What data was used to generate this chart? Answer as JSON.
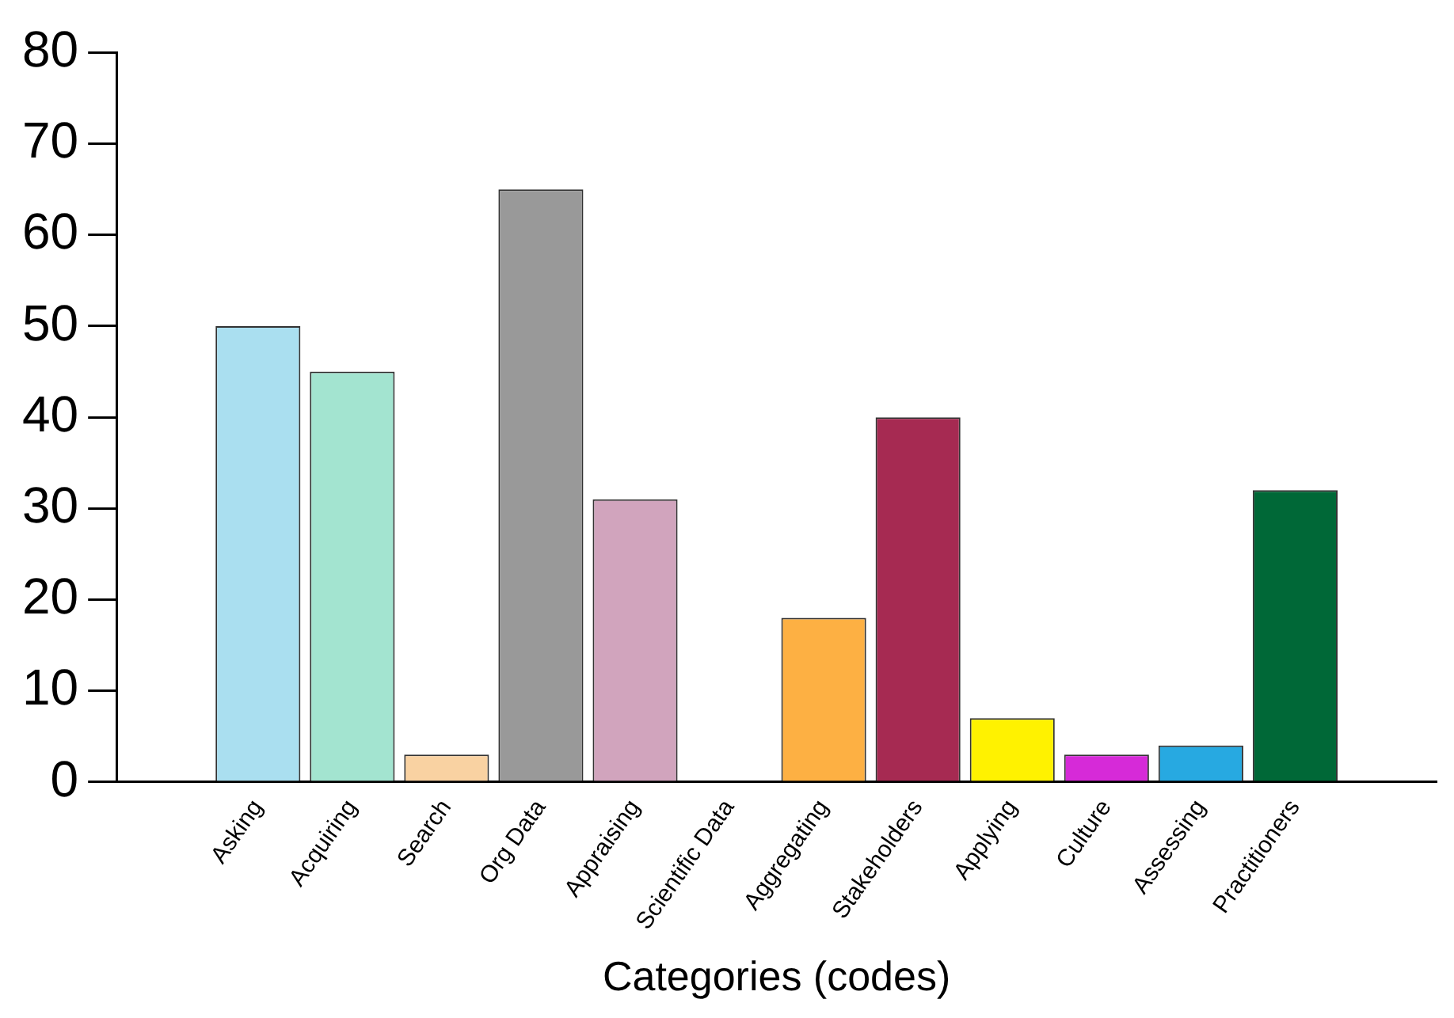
{
  "chart_data": {
    "type": "bar",
    "xlabel": "Categories (codes)",
    "categories": [
      "Asking",
      "Acquiring",
      "Search",
      "Org Data",
      "Appraising",
      "Scientific Data",
      "Aggregating",
      "Stakeholders",
      "Applying",
      "Culture",
      "Assessing",
      "Practitioners"
    ],
    "values": [
      50,
      45,
      3,
      65,
      31,
      0,
      18,
      40,
      7,
      3,
      4,
      32
    ],
    "colors": [
      "#aadff0",
      "#a3e4d0",
      "#f9d2a2",
      "#999999",
      "#d1a4bd",
      "#cccccc",
      "#fdb043",
      "#a62a52",
      "#fff200",
      "#d62ad8",
      "#27a9e1",
      "#006837"
    ],
    "ylim": [
      0,
      80
    ],
    "yticks": [
      0,
      10,
      20,
      30,
      40,
      50,
      60,
      70,
      80
    ],
    "grid": false,
    "legend": false
  }
}
